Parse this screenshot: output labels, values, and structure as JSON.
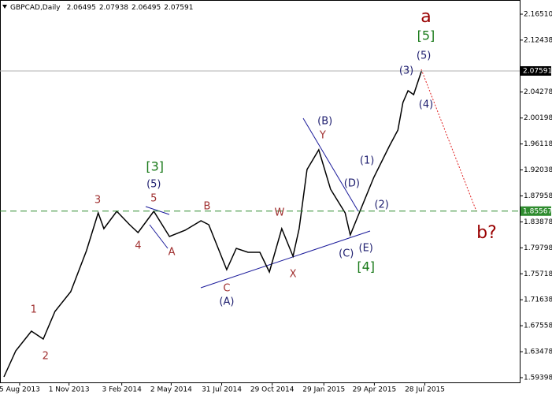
{
  "chart_data": {
    "type": "line",
    "title": "GBPCAD,Daily",
    "ohlc": [
      2.06495,
      2.07938,
      2.06495,
      2.07591
    ],
    "x": [
      "2013-07-08",
      "2013-07-29",
      "2013-08-26",
      "2013-09-16",
      "2013-10-07",
      "2013-11-04",
      "2013-12-02",
      "2013-12-23",
      "2014-01-02",
      "2014-01-25",
      "2014-02-17",
      "2014-03-04",
      "2014-04-01",
      "2014-04-29",
      "2014-05-27",
      "2014-06-24",
      "2014-07-08",
      "2014-07-22",
      "2014-08-09",
      "2014-08-26",
      "2014-09-16",
      "2014-10-07",
      "2014-10-24",
      "2014-11-15",
      "2014-12-05",
      "2014-12-16",
      "2014-12-30",
      "2015-01-20",
      "2015-02-10",
      "2015-03-08",
      "2015-03-17",
      "2015-04-05",
      "2015-04-28",
      "2015-05-26",
      "2015-06-10",
      "2015-06-19",
      "2015-06-28",
      "2015-07-08",
      "2015-07-22"
    ],
    "series": [
      {
        "color": "#000000",
        "values": [
          1.5952,
          1.6361,
          1.6671,
          1.6547,
          1.698,
          1.729,
          1.7934,
          1.8529,
          1.8281,
          1.8554,
          1.8343,
          1.8219,
          1.8554,
          1.8157,
          1.8256,
          1.8405,
          1.8343,
          1.8033,
          1.7637,
          1.7971,
          1.791,
          1.791,
          1.76,
          1.8281,
          1.7848,
          1.8281,
          1.921,
          1.952,
          1.8901,
          1.8529,
          1.8182,
          1.8591,
          1.9086,
          1.9582,
          1.983,
          2.0263,
          2.0449,
          2.0387,
          2.0759
        ]
      }
    ],
    "xlim": [
      "2013-07-01",
      "2016-01-13"
    ],
    "xticks": [
      {
        "value": "2013-08-05",
        "label": "5 Aug 2013"
      },
      {
        "value": "2013-11-01",
        "label": "1 Nov 2013"
      },
      {
        "value": "2014-02-03",
        "label": "3 Feb 2014"
      },
      {
        "value": "2014-05-02",
        "label": "2 May 2014"
      },
      {
        "value": "2014-07-31",
        "label": "31 Jul 2014"
      },
      {
        "value": "2014-10-29",
        "label": "29 Oct 2014"
      },
      {
        "value": "2015-01-29",
        "label": "29 Jan 2015"
      },
      {
        "value": "2015-04-29",
        "label": "29 Apr 2015"
      },
      {
        "value": "2015-07-28",
        "label": "28 Jul 2015"
      }
    ],
    "ylim": [
      1.58654,
      2.1874
    ],
    "yticks": [
      {
        "value": 2.1651,
        "label": "2.16510"
      },
      2.12438,
      2.04278,
      2.00198,
      1.96118,
      1.92038,
      1.87958,
      1.83878,
      1.79798,
      1.75718,
      1.71638,
      1.67558,
      1.63478,
      1.59398
    ],
    "levels": [
      {
        "value": 2.07591,
        "color": "#b0b0b0",
        "dashed": false,
        "label_color": "#000000"
      },
      {
        "value": 1.85567,
        "color": "#2e8b2e",
        "dashed": true,
        "label_color": "#2e8b2e"
      }
    ],
    "annotations": [
      {
        "text": "a",
        "x": "2015-07-30",
        "y": 2.1601,
        "color": "#990000",
        "size": "large"
      },
      {
        "text": "[5]",
        "x": "2015-07-30",
        "y": 2.1304,
        "color": "#1a7a1a",
        "size": "medium"
      },
      {
        "text": "(5)",
        "x": "2015-07-26",
        "y": 2.0994,
        "color": "#202070",
        "size": "normal"
      },
      {
        "text": "(3)",
        "x": "2015-06-25",
        "y": 2.0759,
        "color": "#202070",
        "size": "normal"
      },
      {
        "text": "(4)",
        "x": "2015-07-30",
        "y": 2.0226,
        "color": "#202070",
        "size": "normal"
      },
      {
        "text": "(B)",
        "x": "2015-01-31",
        "y": 1.9966,
        "color": "#202070",
        "size": "normal"
      },
      {
        "text": "Y",
        "x": "2015-01-27",
        "y": 1.9743,
        "color": "#a03030",
        "size": "normal"
      },
      {
        "text": "(1)",
        "x": "2015-04-16",
        "y": 1.9347,
        "color": "#202070",
        "size": "normal"
      },
      {
        "text": "[3]",
        "x": "2014-04-03",
        "y": 1.9248,
        "color": "#1a7a1a",
        "size": "medium"
      },
      {
        "text": "(D)",
        "x": "2015-03-20",
        "y": 1.8987,
        "color": "#202070",
        "size": "normal"
      },
      {
        "text": "(5)",
        "x": "2014-04-01",
        "y": 1.8975,
        "color": "#202070",
        "size": "normal"
      },
      {
        "text": "5",
        "x": "2014-04-01",
        "y": 1.8752,
        "color": "#a03030",
        "size": "normal"
      },
      {
        "text": "3",
        "x": "2013-12-22",
        "y": 1.8727,
        "color": "#a03030",
        "size": "normal"
      },
      {
        "text": "B",
        "x": "2014-07-05",
        "y": 1.8628,
        "color": "#a03030",
        "size": "normal"
      },
      {
        "text": "(2)",
        "x": "2015-05-12",
        "y": 1.8653,
        "color": "#202070",
        "size": "normal"
      },
      {
        "text": "W",
        "x": "2014-11-11",
        "y": 1.8529,
        "color": "#a03030",
        "size": "normal"
      },
      {
        "text": "b?",
        "x": "2015-11-15",
        "y": 1.8207,
        "color": "#990000",
        "size": "large"
      },
      {
        "text": "4",
        "x": "2014-03-04",
        "y": 1.8009,
        "color": "#a03030",
        "size": "normal"
      },
      {
        "text": "A",
        "x": "2014-05-03",
        "y": 1.791,
        "color": "#a03030",
        "size": "normal"
      },
      {
        "text": "(C)",
        "x": "2015-03-10",
        "y": 1.7885,
        "color": "#202070",
        "size": "normal"
      },
      {
        "text": "(E)",
        "x": "2015-04-14",
        "y": 1.7972,
        "color": "#202070",
        "size": "normal"
      },
      {
        "text": "[4]",
        "x": "2015-04-14",
        "y": 1.7674,
        "color": "#1a7a1a",
        "size": "medium"
      },
      {
        "text": "X",
        "x": "2014-12-05",
        "y": 1.7563,
        "color": "#a03030",
        "size": "normal"
      },
      {
        "text": "C",
        "x": "2014-08-09",
        "y": 1.734,
        "color": "#a03030",
        "size": "normal"
      },
      {
        "text": "(A)",
        "x": "2014-08-09",
        "y": 1.7129,
        "color": "#202070",
        "size": "normal"
      },
      {
        "text": "1",
        "x": "2013-08-30",
        "y": 1.7005,
        "color": "#a03030",
        "size": "normal"
      },
      {
        "text": "2",
        "x": "2013-09-20",
        "y": 1.6274,
        "color": "#a03030",
        "size": "normal"
      }
    ]
  }
}
